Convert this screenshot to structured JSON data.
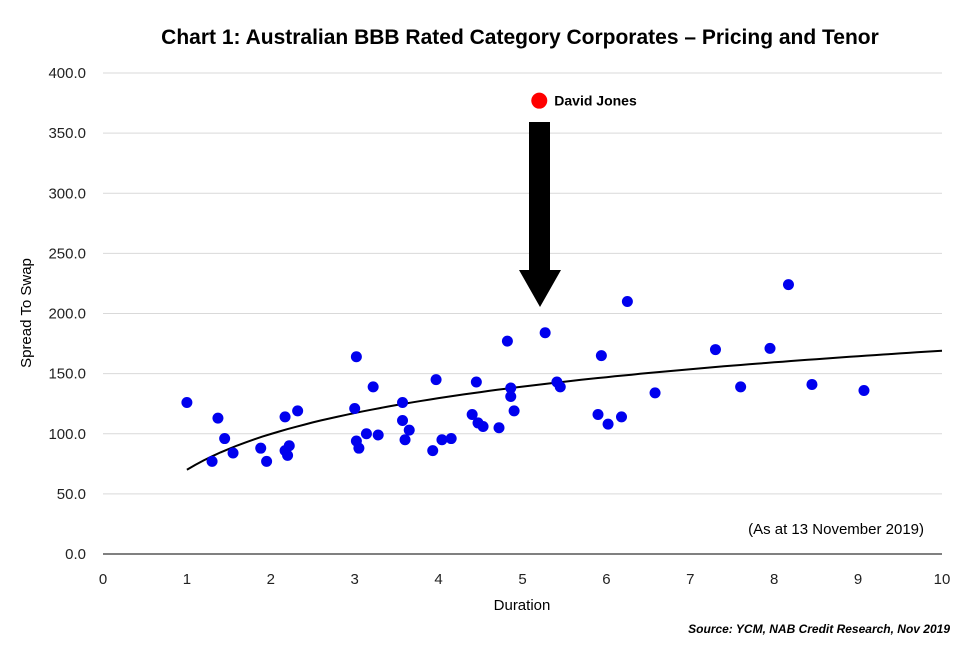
{
  "chart_data": {
    "type": "scatter",
    "title": "Chart 1: Australian BBB Rated Category Corporates – Pricing and Tenor",
    "xlabel": "Duration",
    "ylabel": "Spread To Swap",
    "xlim": [
      0,
      10
    ],
    "ylim": [
      0,
      400
    ],
    "x_ticks": [
      "0",
      "1",
      "2",
      "3",
      "4",
      "5",
      "6",
      "7",
      "8",
      "9",
      "10"
    ],
    "y_ticks": [
      "0.0",
      "50.0",
      "100.0",
      "150.0",
      "200.0",
      "250.0",
      "300.0",
      "350.0",
      "400.0"
    ],
    "grid": "horizontal",
    "annotation": "(As at 13 November 2019)",
    "source": "Source: YCM, NAB Credit Research, Nov 2019",
    "colors": {
      "points": "#0000ee",
      "highlight": "#ff0000",
      "trend": "#000000",
      "arrow": "#000000",
      "grid": "#d9d9d9"
    },
    "series": [
      {
        "points": [
          [
            1.0,
            126
          ],
          [
            1.3,
            77
          ],
          [
            1.37,
            113
          ],
          [
            1.45,
            96
          ],
          [
            1.55,
            84
          ],
          [
            1.88,
            88
          ],
          [
            1.95,
            77
          ],
          [
            2.17,
            86
          ],
          [
            2.17,
            114
          ],
          [
            2.2,
            82
          ],
          [
            2.22,
            90
          ],
          [
            2.32,
            119
          ],
          [
            3.0,
            121
          ],
          [
            3.02,
            164
          ],
          [
            3.02,
            94
          ],
          [
            3.05,
            88
          ],
          [
            3.14,
            100
          ],
          [
            3.22,
            139
          ],
          [
            3.28,
            99
          ],
          [
            3.57,
            126
          ],
          [
            3.57,
            111
          ],
          [
            3.6,
            95
          ],
          [
            3.65,
            103
          ],
          [
            3.93,
            86
          ],
          [
            3.97,
            145
          ],
          [
            4.04,
            95
          ],
          [
            4.15,
            96
          ],
          [
            4.4,
            116
          ],
          [
            4.45,
            143
          ],
          [
            4.47,
            109
          ],
          [
            4.53,
            106
          ],
          [
            4.72,
            105
          ],
          [
            4.82,
            177
          ],
          [
            4.86,
            138
          ],
          [
            4.86,
            131
          ],
          [
            4.9,
            119
          ],
          [
            5.27,
            184
          ],
          [
            5.41,
            143
          ],
          [
            5.45,
            139
          ],
          [
            5.9,
            116
          ],
          [
            5.94,
            165
          ],
          [
            6.02,
            108
          ],
          [
            6.18,
            114
          ],
          [
            6.25,
            210
          ],
          [
            6.58,
            134
          ],
          [
            7.3,
            170
          ],
          [
            7.6,
            139
          ],
          [
            7.95,
            171
          ],
          [
            8.17,
            224
          ],
          [
            8.45,
            141
          ],
          [
            9.07,
            136
          ]
        ]
      }
    ],
    "highlight": {
      "name": "David Jones",
      "x": 5.2,
      "y": 377
    },
    "trendline": {
      "type": "logarithmic",
      "a": 70,
      "b": 43
    }
  }
}
